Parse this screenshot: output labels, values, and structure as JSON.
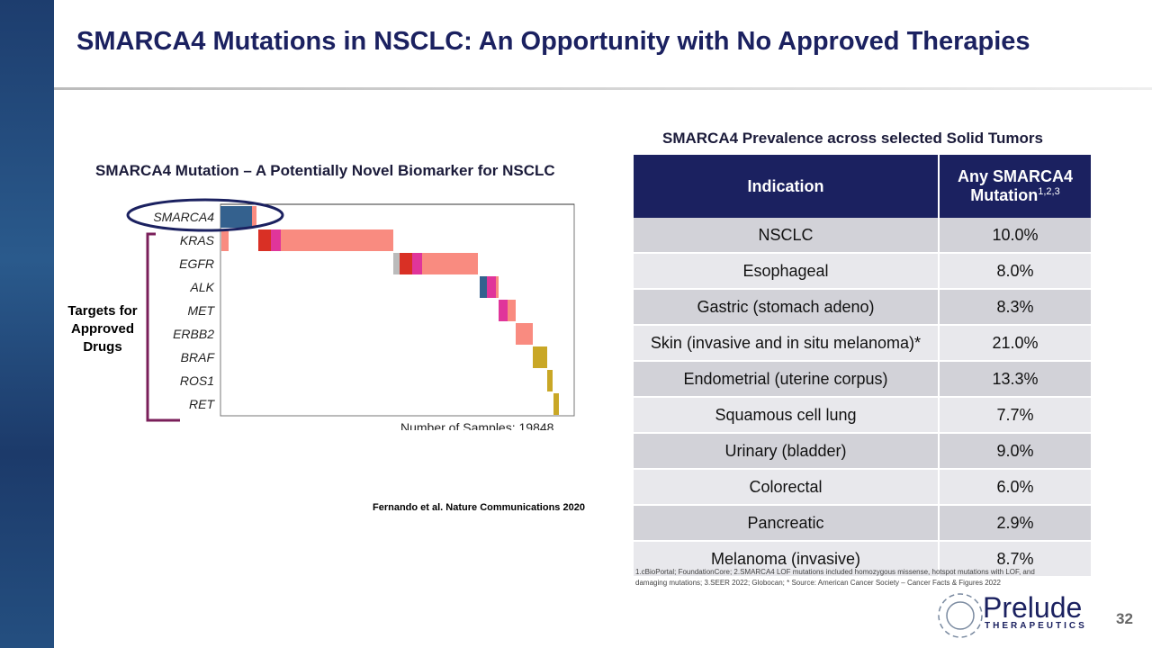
{
  "title": "SMARCA4 Mutations in NSCLC: An Opportunity with No Approved Therapies",
  "left": {
    "subtitle": "SMARCA4 Mutation – A Potentially Novel Biomarker for NSCLC",
    "genes": [
      "SMARCA4",
      "KRAS",
      "EGFR",
      "ALK",
      "MET",
      "ERBB2",
      "BRAF",
      "ROS1",
      "RET"
    ],
    "samples_label": "Number of Samples: 19848",
    "targets_label": "Targets for Approved Drugs",
    "citation": "Fernando et al. Nature Communications 2020"
  },
  "table": {
    "caption": "SMARCA4 Prevalence across selected Solid Tumors",
    "col1": "Indication",
    "col2": "Any SMARCA4 Mutation",
    "col2_sup": "1,2,3",
    "rows": [
      [
        "NSCLC",
        "10.0%"
      ],
      [
        "Esophageal",
        "8.0%"
      ],
      [
        "Gastric (stomach adeno)",
        "8.3%"
      ],
      [
        "Skin (invasive and in situ melanoma)*",
        "21.0%"
      ],
      [
        "Endometrial (uterine corpus)",
        "13.3%"
      ],
      [
        "Squamous cell lung",
        "7.7%"
      ],
      [
        "Urinary (bladder)",
        "9.0%"
      ],
      [
        "Colorectal",
        "6.0%"
      ],
      [
        "Pancreatic",
        "2.9%"
      ],
      [
        "Melanoma (invasive)",
        "8.7%"
      ]
    ]
  },
  "footnote": "1.cBioPortal; FoundationCore;  2.SMARCA4 LOF mutations included homozygous missense, hotspot mutations with LOF, and damaging mutations;  3.SEER 2022; Globocan;  * Source: American Cancer Society – Cancer Facts & Figures 2022",
  "logo": {
    "name": "Prelude",
    "sub": "THERAPEUTICS"
  },
  "page": "32",
  "colors": {
    "navy": "#1b2160",
    "missense": "#f98b80",
    "truncating": "#d93025",
    "inframe": "#e0359a",
    "amp": "#34618e",
    "fusion": "#c9a726"
  }
}
